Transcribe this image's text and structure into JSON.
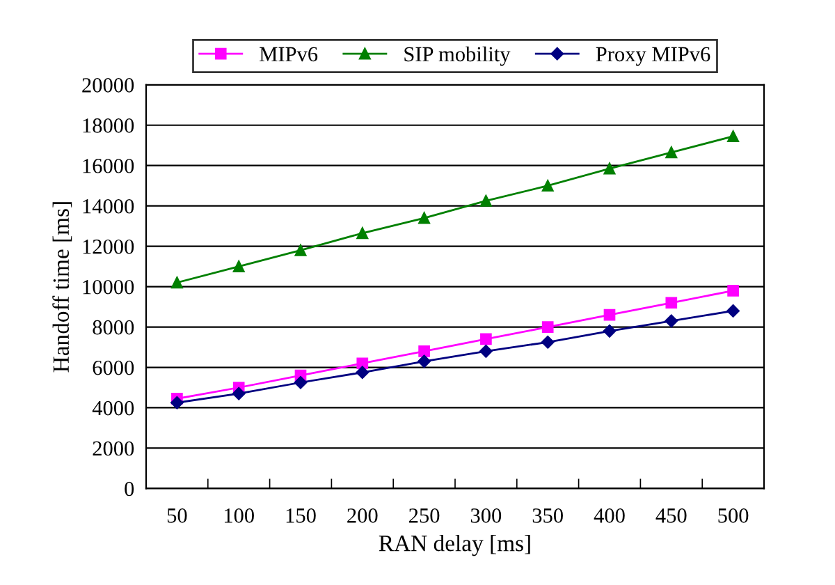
{
  "chart_data": {
    "type": "line",
    "xlabel": "RAN delay [ms]",
    "ylabel": "Handoff time [ms]",
    "categories": [
      "50",
      "100",
      "150",
      "200",
      "250",
      "300",
      "350",
      "400",
      "450",
      "500"
    ],
    "series": [
      {
        "name": "MIPv6",
        "color": "#ff00ff",
        "marker": "square",
        "values": [
          4450,
          5000,
          5600,
          6200,
          6800,
          7400,
          8000,
          8600,
          9200,
          9800
        ]
      },
      {
        "name": "SIP mobility",
        "color": "#008000",
        "marker": "triangle",
        "values": [
          10200,
          11000,
          11800,
          12650,
          13400,
          14250,
          15000,
          15850,
          16650,
          17450
        ]
      },
      {
        "name": "Proxy MIPv6",
        "color": "#000080",
        "marker": "diamond",
        "values": [
          4250,
          4700,
          5250,
          5750,
          6300,
          6800,
          7250,
          7800,
          8300,
          8800
        ]
      }
    ],
    "ylim": [
      0,
      20000
    ],
    "yticks": [
      0,
      2000,
      4000,
      6000,
      8000,
      10000,
      12000,
      14000,
      16000,
      18000,
      20000
    ],
    "grid": "y",
    "legend": "top",
    "line_style": "solid"
  }
}
